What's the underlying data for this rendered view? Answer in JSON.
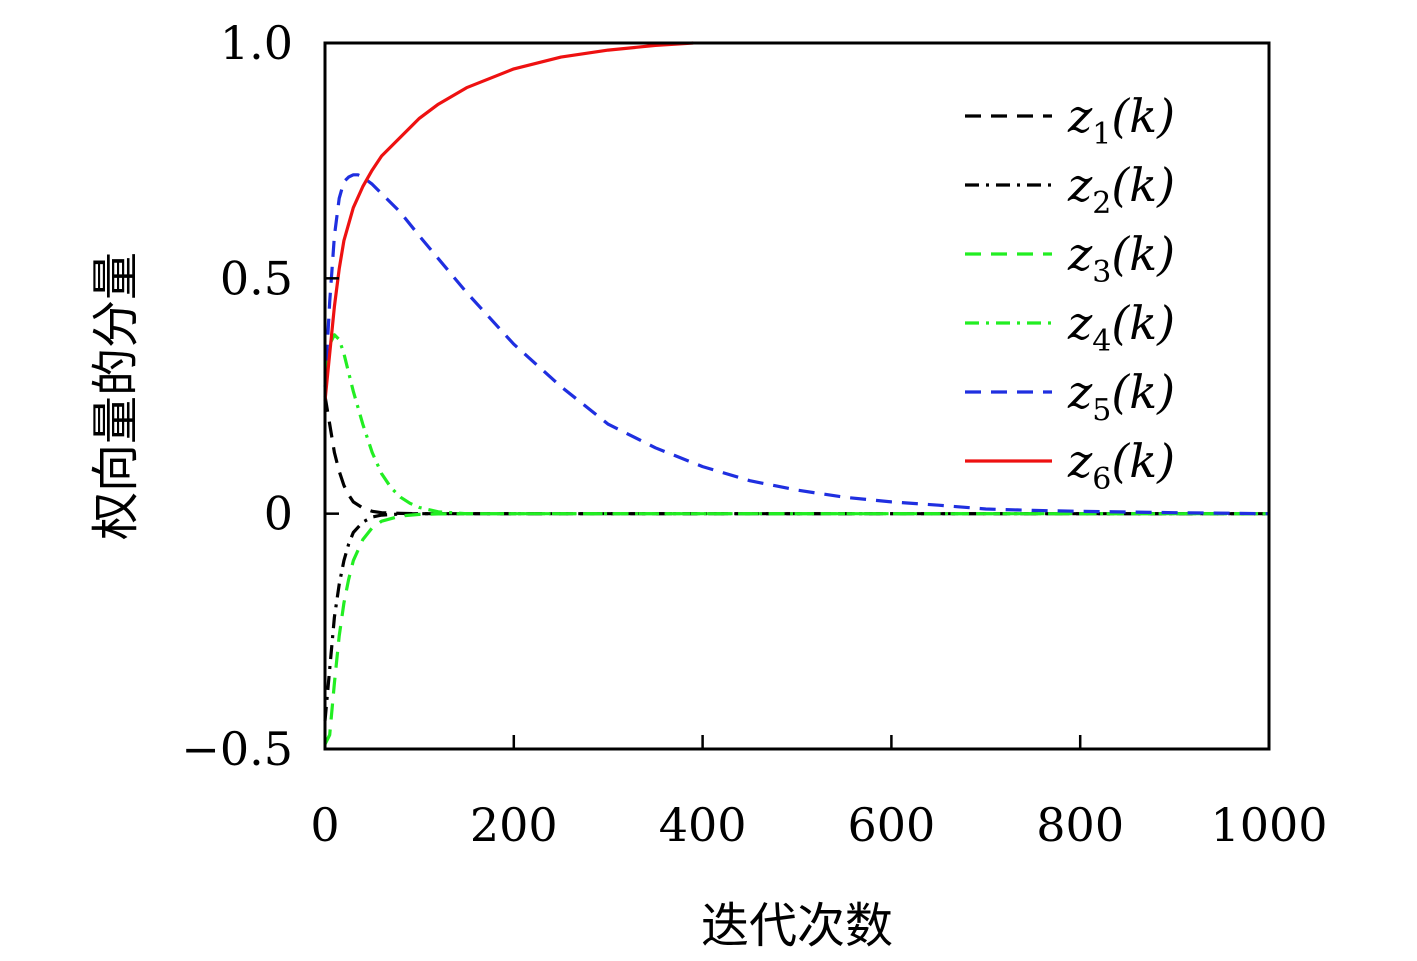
{
  "chart_data": {
    "type": "line",
    "xlabel": "迭代次数",
    "ylabel": "权向量的分量",
    "xlim": [
      0,
      1000
    ],
    "ylim": [
      -0.5,
      1.0
    ],
    "xticks": [
      0,
      200,
      400,
      600,
      800,
      1000
    ],
    "xtick_labels": [
      "0",
      "200",
      "400",
      "600",
      "800",
      "1000"
    ],
    "yticks": [
      -0.5,
      0,
      0.5,
      1.0
    ],
    "ytick_labels": [
      "−0.5",
      "0",
      "0.5",
      "1.0"
    ],
    "legend_position": "top-right",
    "grid": false,
    "series": [
      {
        "name": "z1(k)",
        "label_base": "z",
        "label_sub": "1",
        "label_arg": "(k)",
        "color": "#000000",
        "dash": "16,10",
        "x": [
          0,
          5,
          10,
          15,
          20,
          25,
          30,
          40,
          50,
          60,
          80,
          100,
          150,
          1000
        ],
        "y": [
          0.25,
          0.19,
          0.13,
          0.09,
          0.06,
          0.04,
          0.025,
          0.012,
          0.005,
          0.002,
          0.0005,
          0,
          0,
          0
        ]
      },
      {
        "name": "z2(k)",
        "label_base": "z",
        "label_sub": "2",
        "label_arg": "(k)",
        "color": "#000000",
        "dash": "14,7,3,7",
        "x": [
          0,
          5,
          10,
          15,
          20,
          25,
          30,
          40,
          50,
          60,
          80,
          100,
          150,
          1000
        ],
        "y": [
          -0.44,
          -0.33,
          -0.22,
          -0.15,
          -0.1,
          -0.065,
          -0.04,
          -0.018,
          -0.007,
          -0.003,
          -0.0008,
          0,
          0,
          0
        ]
      },
      {
        "name": "z3(k)",
        "label_base": "z",
        "label_sub": "3",
        "label_arg": "(k)",
        "color": "#22ee22",
        "dash": "16,10",
        "x": [
          0,
          5,
          10,
          15,
          20,
          25,
          30,
          40,
          50,
          60,
          80,
          100,
          120,
          150,
          1000
        ],
        "y": [
          -0.49,
          -0.47,
          -0.36,
          -0.26,
          -0.19,
          -0.14,
          -0.1,
          -0.055,
          -0.03,
          -0.016,
          -0.005,
          -0.0015,
          -0.0005,
          0,
          0
        ]
      },
      {
        "name": "z4(k)",
        "label_base": "z",
        "label_sub": "4",
        "label_arg": "(k)",
        "color": "#22ee22",
        "dash": "14,7,3,7",
        "x": [
          0,
          5,
          10,
          15,
          20,
          25,
          30,
          40,
          50,
          60,
          70,
          80,
          90,
          100,
          120,
          150,
          1000
        ],
        "y": [
          0.3,
          0.36,
          0.38,
          0.37,
          0.34,
          0.3,
          0.26,
          0.19,
          0.13,
          0.085,
          0.055,
          0.035,
          0.022,
          0.013,
          0.004,
          0,
          0
        ]
      },
      {
        "name": "z5(k)",
        "label_base": "z",
        "label_sub": "5",
        "label_arg": "(k)",
        "color": "#1f2fe0",
        "dash": "16,10",
        "x": [
          0,
          5,
          10,
          15,
          20,
          25,
          30,
          35,
          40,
          50,
          60,
          80,
          100,
          150,
          200,
          250,
          300,
          350,
          400,
          450,
          500,
          550,
          600,
          650,
          700,
          750,
          800,
          900,
          1000
        ],
        "y": [
          0.27,
          0.45,
          0.59,
          0.67,
          0.705,
          0.715,
          0.72,
          0.72,
          0.715,
          0.7,
          0.68,
          0.64,
          0.59,
          0.47,
          0.36,
          0.27,
          0.19,
          0.14,
          0.1,
          0.07,
          0.05,
          0.035,
          0.025,
          0.018,
          0.01,
          0.007,
          0.005,
          0.002,
          0
        ]
      },
      {
        "name": "z6(k)",
        "label_base": "z",
        "label_sub": "6",
        "label_arg": "(k)",
        "color": "#ee1111",
        "dash": "none",
        "x": [
          0,
          5,
          10,
          15,
          20,
          30,
          40,
          50,
          60,
          80,
          100,
          120,
          150,
          200,
          250,
          300,
          350,
          390
        ],
        "y": [
          0.24,
          0.34,
          0.44,
          0.52,
          0.58,
          0.65,
          0.695,
          0.73,
          0.76,
          0.8,
          0.84,
          0.87,
          0.905,
          0.945,
          0.97,
          0.985,
          0.995,
          1.0
        ]
      }
    ]
  }
}
